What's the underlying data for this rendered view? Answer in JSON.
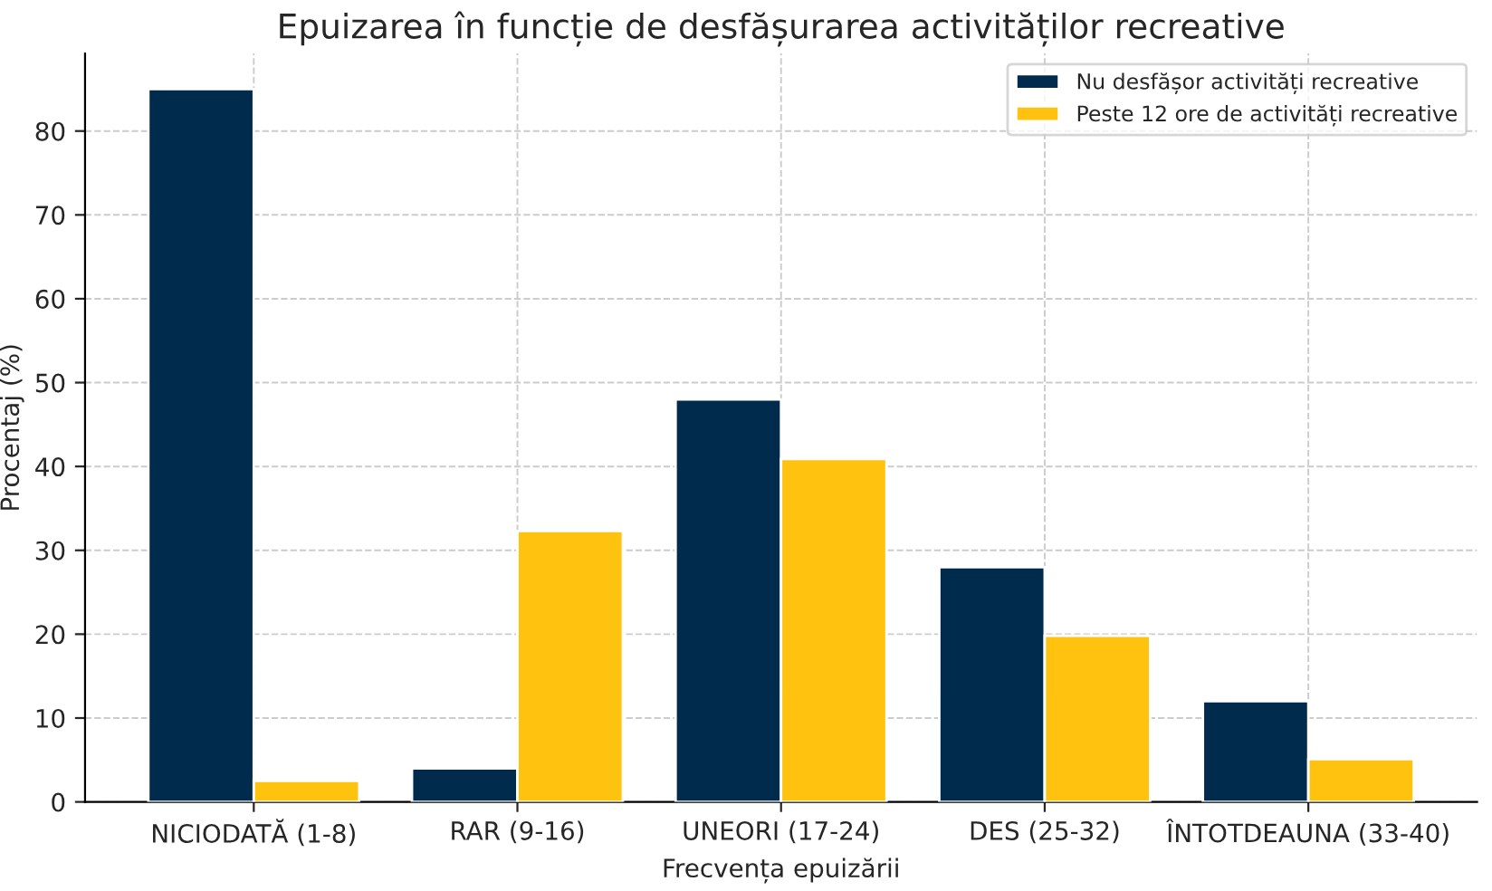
{
  "chart_data": {
    "type": "bar",
    "title": "Epuizarea în funcție de desfășurarea activităților recreative",
    "xlabel": "Frecvența epuizării",
    "ylabel": "Procentaj (%)",
    "categories": [
      "NICIODATĂ (1-8)",
      "RAR (9-16)",
      "UNEORI (17-24)",
      "DES (25-32)",
      "ÎNTOTDEAUNA (33-40)"
    ],
    "series": [
      {
        "name": "Nu desfășor activități recreative",
        "color": "#002b4d",
        "values": [
          85,
          4,
          48,
          28,
          12
        ]
      },
      {
        "name": "Peste 12 ore de activități recreative",
        "color": "#ffc20e",
        "values": [
          2.5,
          32.3,
          40.9,
          19.8,
          5.1
        ]
      }
    ],
    "ylim": [
      0,
      89.25
    ],
    "yticks": [
      0,
      10,
      20,
      30,
      40,
      50,
      60,
      70,
      80
    ],
    "grid": true,
    "legend": "top right"
  }
}
